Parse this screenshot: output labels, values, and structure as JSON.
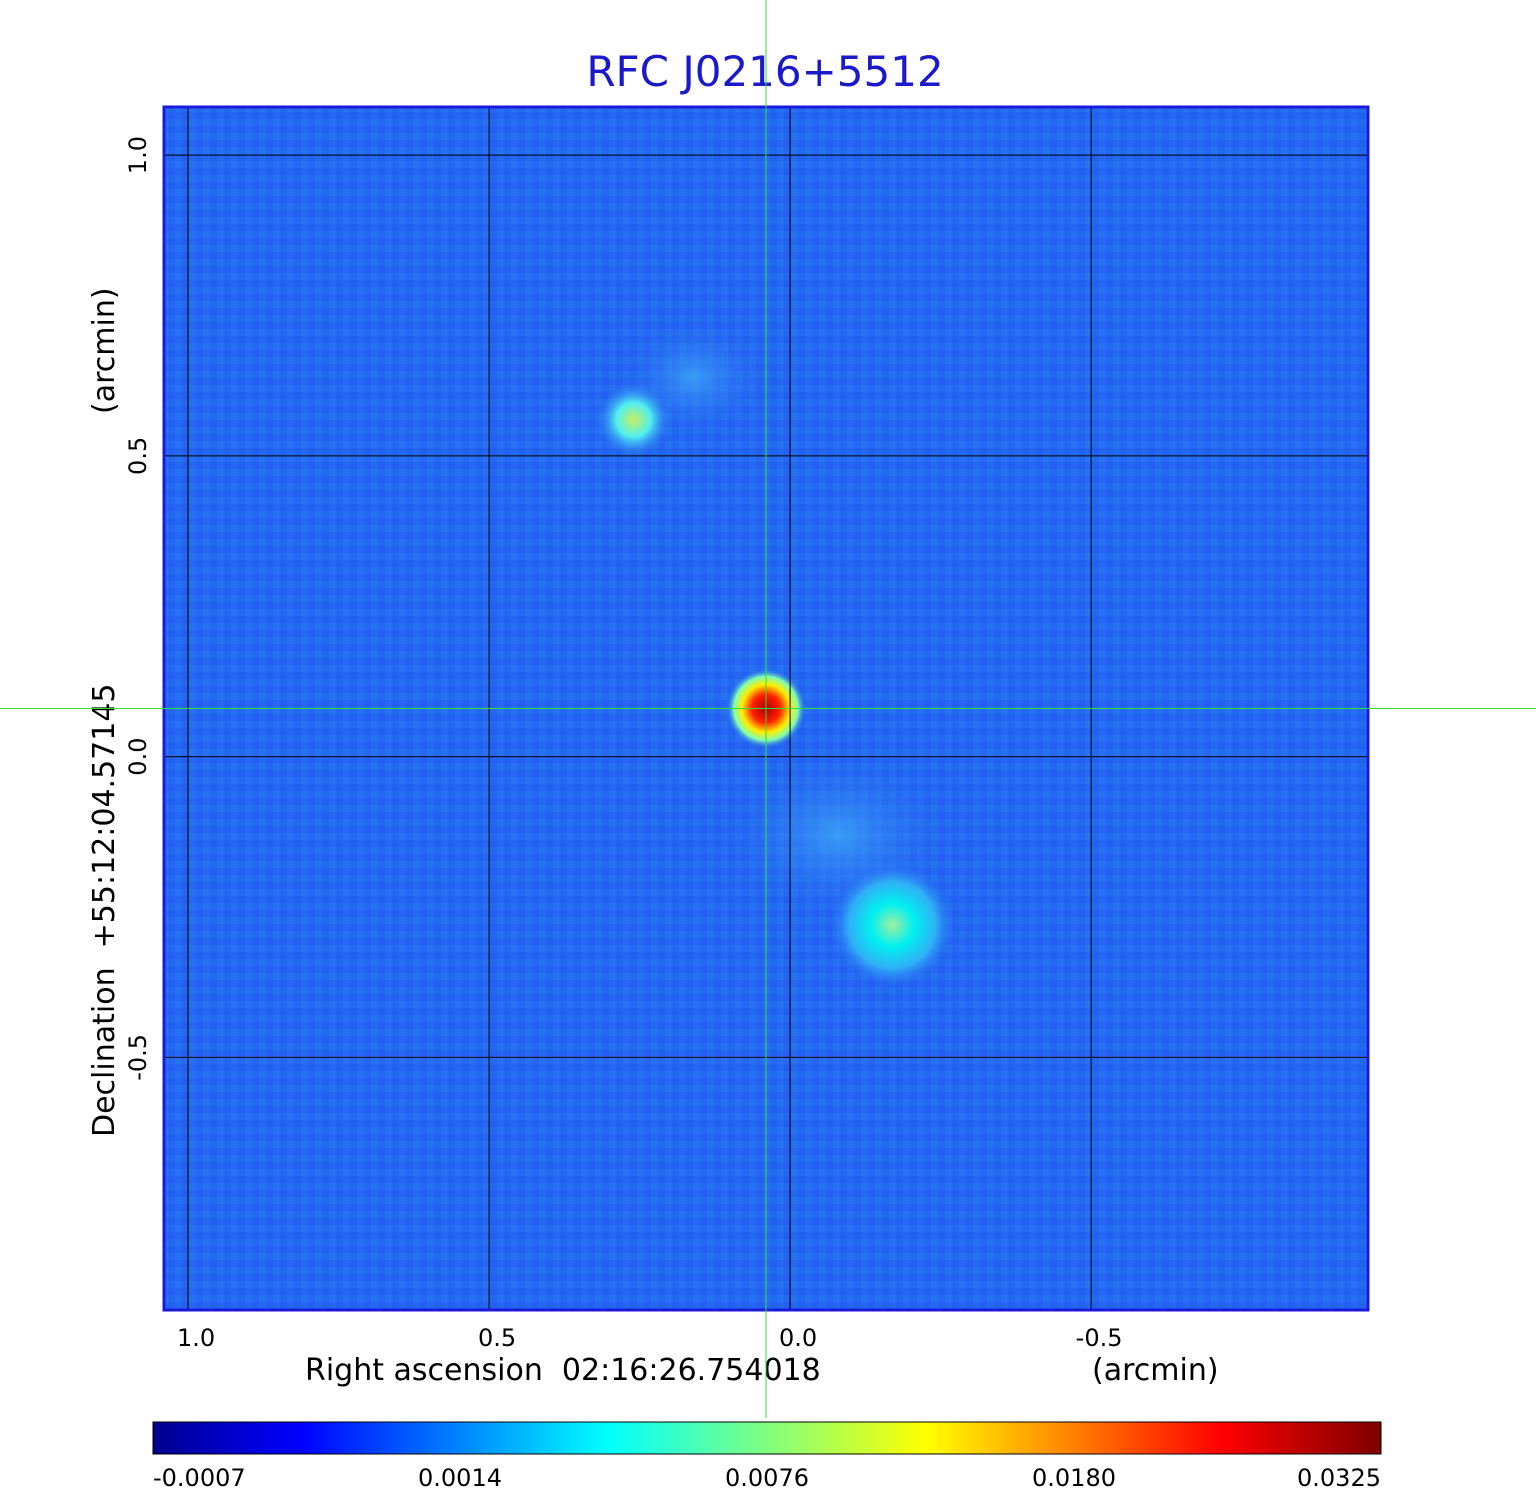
{
  "chart_data": {
    "type": "heatmap",
    "title": "RFC J0216+5512",
    "xlabel": "Right ascension  02:16:26.754018",
    "xunit": "(arcmin)",
    "ylabel": "Declination  +55:12:04.57145",
    "yunit": "(arcmin)",
    "xlim": [
      1.04,
      -0.96
    ],
    "ylim": [
      -0.92,
      1.08
    ],
    "xticks": [
      1.0,
      0.5,
      0.0,
      -0.5
    ],
    "xtick_labels": [
      "1.0",
      "0.5",
      "0.0",
      "-0.5"
    ],
    "yticks": [
      1.0,
      0.5,
      0.0,
      -0.5
    ],
    "ytick_labels": [
      "1.0",
      "0.5",
      "0.0",
      "-0.5"
    ],
    "grid": true,
    "crosshair": {
      "x": 0.04,
      "y": 0.08
    },
    "colorbar": {
      "colormap": "jet",
      "ticks": [
        "-0.0007",
        "0.0014",
        "0.0076",
        "0.0180",
        "0.0325"
      ],
      "range": [
        -0.0007,
        0.0325
      ]
    },
    "sources": [
      {
        "x": 0.04,
        "y": 0.08,
        "peak": 0.0325
      },
      {
        "x": 0.26,
        "y": 0.56,
        "peak": 0.008
      },
      {
        "x": -0.17,
        "y": -0.28,
        "peak": 0.0072
      }
    ]
  },
  "colors": {
    "title": "#1a1acc",
    "frame": "#1a1adc",
    "grid": "#000000",
    "crosshair": "#33dd33",
    "background_field": "#2060f0"
  }
}
